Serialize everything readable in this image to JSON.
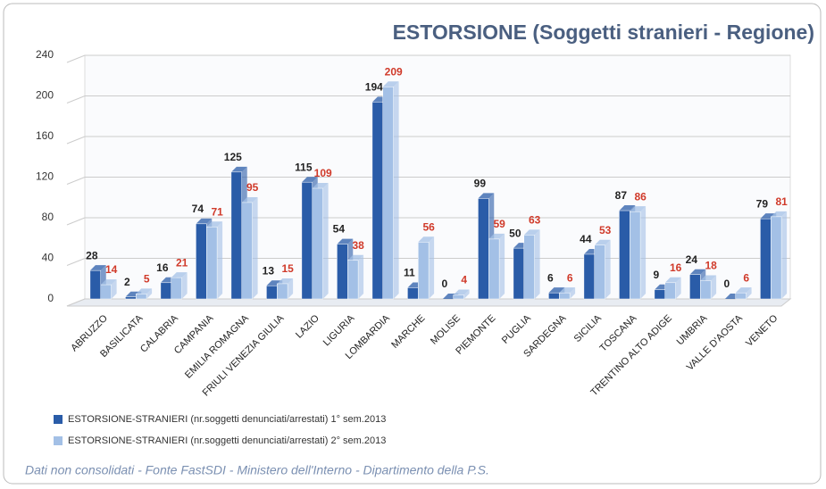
{
  "chart_data": {
    "type": "bar",
    "title": "ESTORSIONE (Soggetti stranieri - Regione)",
    "footnote": "Dati non consolidati - Fonte FastSDI - Ministero dell'Interno - Dipartimento della P.S.",
    "categories": [
      "ABRUZZO",
      "BASILICATA",
      "CALABRIA",
      "CAMPANIA",
      "EMILIA ROMAGNA",
      "FRIULI VENEZIA GIULIA",
      "LAZIO",
      "LIGURIA",
      "LOMBARDIA",
      "MARCHE",
      "MOLISE",
      "PIEMONTE",
      "PUGLIA",
      "SARDEGNA",
      "SICILIA",
      "TOSCANA",
      "TRENTINO ALTO ADIGE",
      "UMBRIA",
      "VALLE D'AOSTA",
      "VENETO"
    ],
    "series": [
      {
        "name": "ESTORSIONE-STRANIERI (nr.soggetti denunciati/arrestati) 1° sem.2013",
        "color": "#2a5ca8",
        "label_color": "#222222",
        "values": [
          28,
          2,
          16,
          74,
          125,
          13,
          115,
          54,
          194,
          11,
          0,
          99,
          50,
          6,
          44,
          87,
          9,
          24,
          0,
          79
        ]
      },
      {
        "name": "ESTORSIONE-STRANIERI (nr.soggetti denunciati/arrestati) 2° sem.2013",
        "color": "#a3c0e6",
        "label_color": "#d03a2a",
        "values": [
          14,
          5,
          21,
          71,
          95,
          15,
          109,
          38,
          209,
          56,
          4,
          59,
          63,
          6,
          53,
          86,
          16,
          18,
          6,
          81
        ]
      }
    ],
    "ylim": [
      0,
      240
    ],
    "yticks": [
      0,
      40,
      80,
      120,
      160,
      200,
      240
    ],
    "grid": true
  }
}
